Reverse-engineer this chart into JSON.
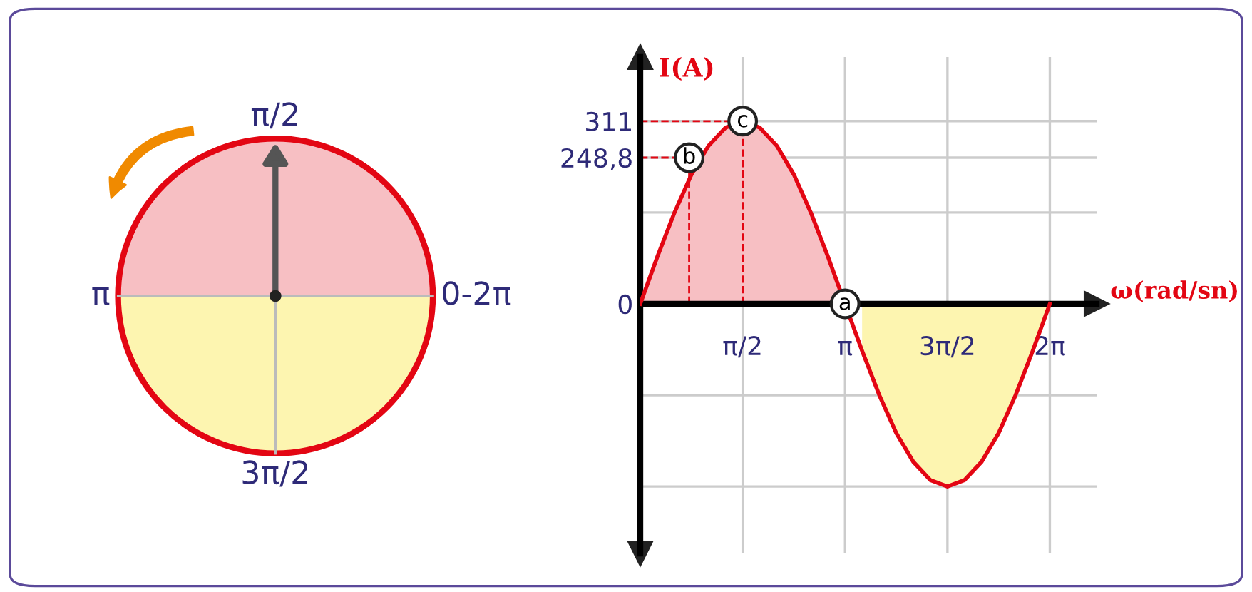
{
  "chart_data": [
    {
      "type": "other",
      "annotations": [
        "π/2",
        "π",
        "0-2π",
        "3π/2"
      ]
    },
    {
      "type": "area",
      "xlabel": "ω(rad/sn)",
      "ylabel": "I(A)",
      "grid": true,
      "series": [
        {
          "color": "#f7bfc3",
          "x": [
            0,
            0.2618,
            0.5236,
            0.7854,
            1.0472,
            1.309,
            1.5708,
            1.8326,
            2.0944,
            2.3562,
            2.618,
            2.8798,
            3.1416
          ],
          "values": [
            0,
            80,
            155,
            220,
            269,
            300,
            311,
            300,
            269,
            220,
            155,
            80,
            0
          ]
        },
        {
          "color": "#fdf5b0",
          "x": [
            3.4034,
            3.6652,
            3.927,
            4.1888,
            4.4506,
            4.7124,
            4.9742,
            5.236,
            5.4978,
            5.7596,
            6.0214,
            6.2832
          ],
          "values": [
            -80,
            -155,
            -220,
            -269,
            -300,
            -311,
            -300,
            -269,
            -220,
            -155,
            -80,
            0
          ]
        },
        {
          "type": "line",
          "color": "#e30613",
          "x": [
            0,
            0.2618,
            0.5236,
            0.7854,
            1.0472,
            1.309,
            1.5708,
            1.8326,
            2.0944,
            2.3562,
            2.618,
            2.8798,
            3.1416,
            3.4034,
            3.6652,
            3.927,
            4.1888,
            4.4506,
            4.7124,
            4.9742,
            5.236,
            5.4978,
            5.7596,
            6.0214,
            6.2832
          ],
          "values": [
            0,
            80,
            155,
            220,
            269,
            300,
            311,
            300,
            269,
            220,
            155,
            80,
            0,
            -80,
            -155,
            -220,
            -269,
            -300,
            -311,
            -300,
            -269,
            -220,
            -155,
            -80,
            0
          ]
        }
      ],
      "xlim": [
        0,
        7.0
      ],
      "ylim": [
        -425,
        420
      ],
      "xticks": [
        {
          "value": 1.5708,
          "label": "π/2"
        },
        {
          "value": 3.1416,
          "label": "π"
        },
        {
          "value": 4.7124,
          "label": "3π/2"
        },
        {
          "value": 6.2832,
          "label": "2π"
        }
      ],
      "yticks": [
        {
          "value": -311,
          "label": null
        },
        {
          "value": -155.5,
          "label": null
        },
        0,
        {
          "value": 155.5,
          "label": null
        },
        {
          "value": 248.8,
          "label": "248,8"
        },
        311
      ],
      "annotations": [
        {
          "text": "a",
          "x": 3.1416,
          "y": 0
        },
        {
          "text": "b",
          "x": 0.75,
          "y": 248.8
        },
        {
          "text": "c",
          "x": 1.5708,
          "y": 311
        }
      ]
    }
  ]
}
